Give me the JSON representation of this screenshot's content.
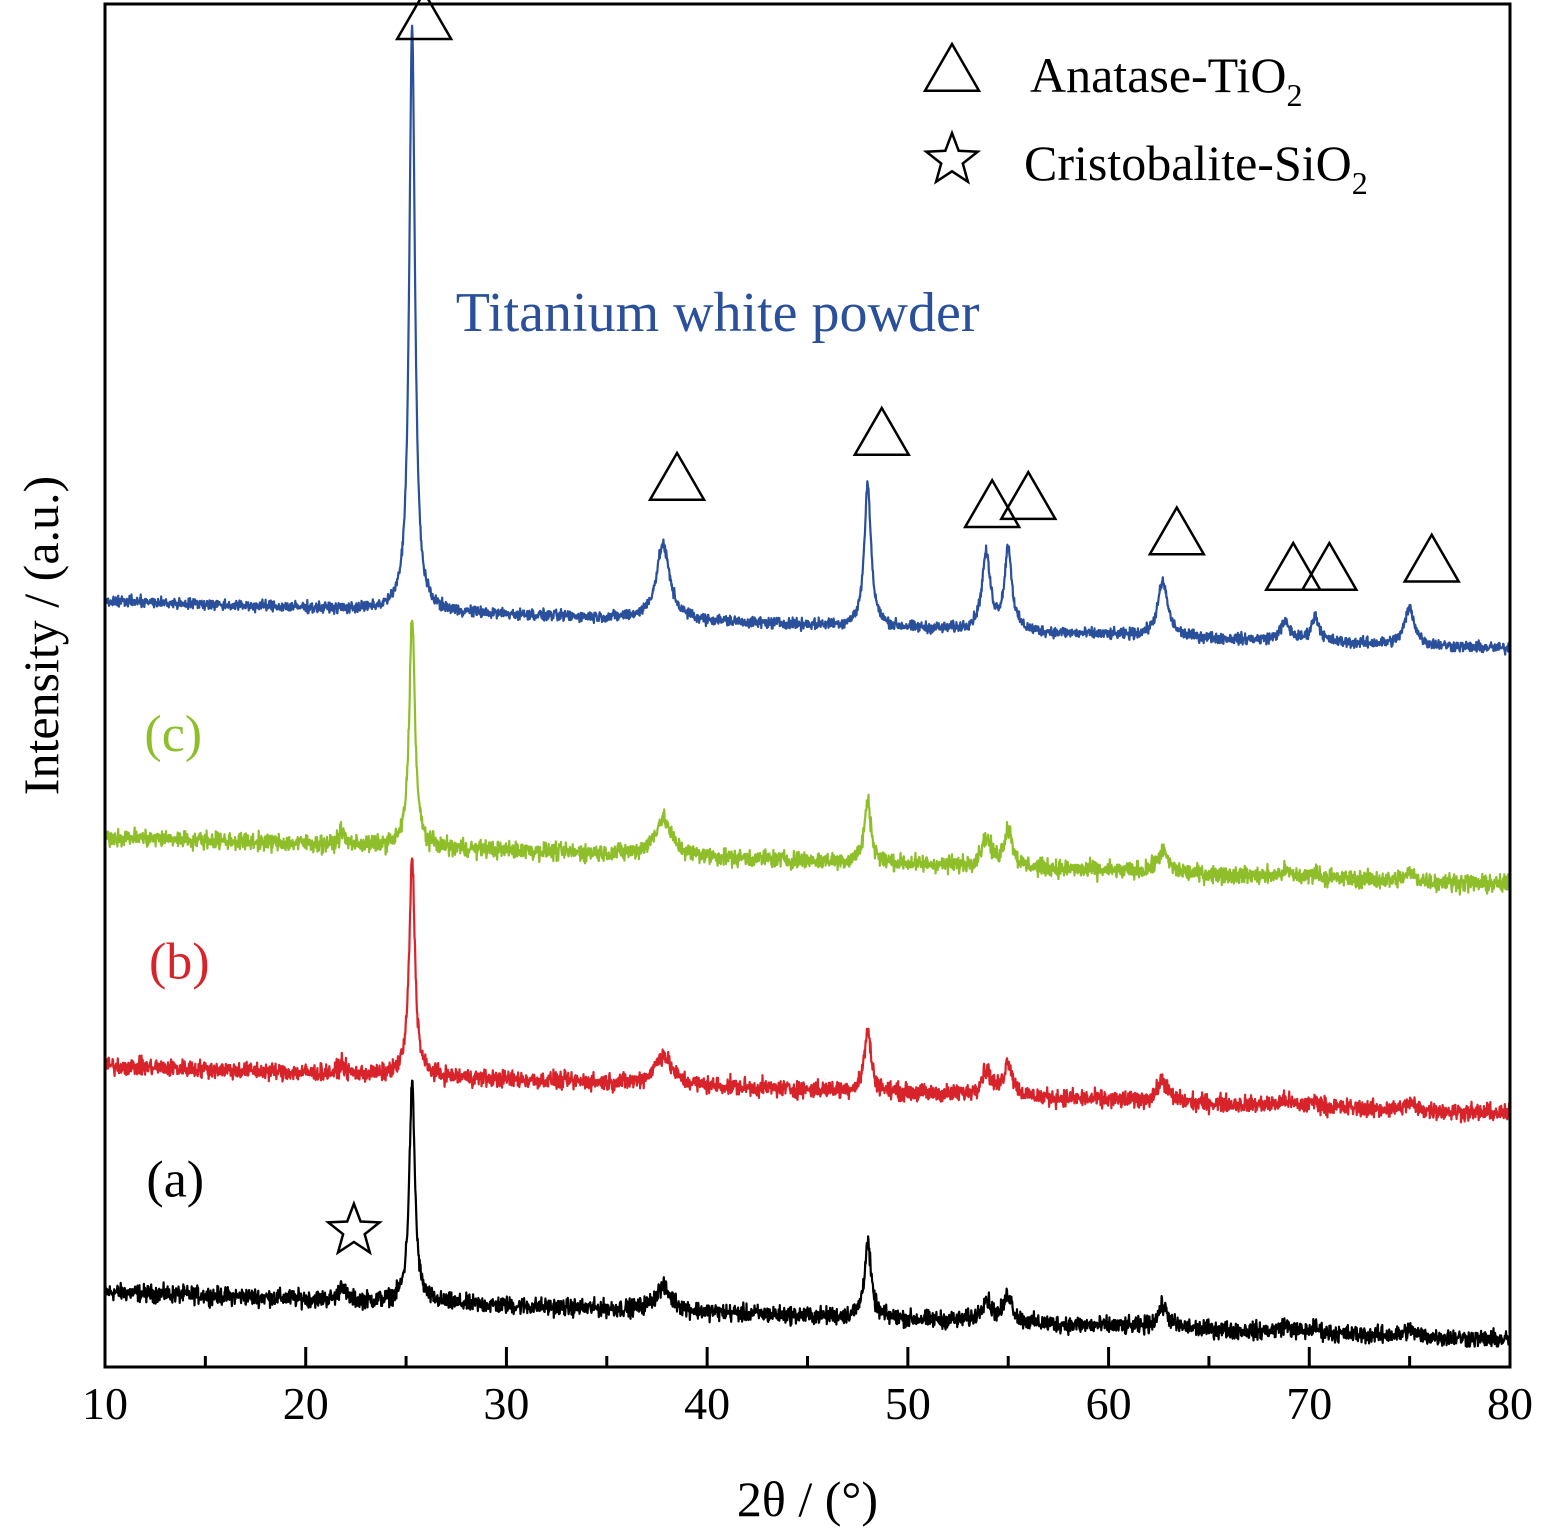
{
  "chart_data": {
    "type": "line",
    "xlabel": "2θ / (°)",
    "ylabel": "Intensity / (a.u.)",
    "xlim": [
      10,
      80
    ],
    "ylim": [
      0,
      1
    ],
    "x_ticks": [
      10,
      20,
      30,
      40,
      50,
      60,
      70,
      80
    ],
    "x_minor_step": 5,
    "grid": false,
    "legend": {
      "position": "top-right",
      "entries": [
        {
          "marker": "triangle",
          "label_main": "Anatase-TiO",
          "label_sub": "2"
        },
        {
          "marker": "star",
          "label_main": "Cristobalite-SiO",
          "label_sub": "2"
        }
      ]
    },
    "annotations": [
      {
        "text": "Titanium white powder",
        "color": "#2a4f9b",
        "x": 47,
        "y": 0.76
      }
    ],
    "series": [
      {
        "name": "(a)",
        "color": "#000000",
        "label_color": "#000000",
        "label_pos": [
          13.5,
          0.125
        ],
        "baseline": 0.055,
        "slope": -0.0005,
        "noise": 0.0055,
        "peaks": [
          [
            21.8,
            0.012,
            0.15
          ],
          [
            25.3,
            0.16,
            0.17
          ],
          [
            37.8,
            0.017,
            0.5
          ],
          [
            48.0,
            0.055,
            0.2
          ],
          [
            53.9,
            0.016,
            0.3
          ],
          [
            55.0,
            0.02,
            0.25
          ],
          [
            62.7,
            0.016,
            0.3
          ],
          [
            68.8,
            0.005,
            0.3
          ],
          [
            70.3,
            0.004,
            0.25
          ],
          [
            75.0,
            0.005,
            0.3
          ]
        ]
      },
      {
        "name": "(b)",
        "color": "#d9232a",
        "label_color": "#d9232a",
        "label_pos": [
          13.7,
          0.285
        ],
        "baseline": 0.221,
        "slope": -0.0005,
        "noise": 0.0055,
        "peaks": [
          [
            21.8,
            0.008,
            0.15
          ],
          [
            25.3,
            0.16,
            0.17
          ],
          [
            37.8,
            0.022,
            0.5
          ],
          [
            48.0,
            0.045,
            0.2
          ],
          [
            53.9,
            0.018,
            0.3
          ],
          [
            55.0,
            0.025,
            0.25
          ],
          [
            62.7,
            0.016,
            0.3
          ],
          [
            68.8,
            0.004,
            0.3
          ],
          [
            70.3,
            0.004,
            0.25
          ],
          [
            75.0,
            0.005,
            0.3
          ]
        ]
      },
      {
        "name": "(c)",
        "color": "#8ebf2a",
        "label_color": "#8ebf2a",
        "label_pos": [
          13.4,
          0.452
        ],
        "baseline": 0.389,
        "slope": -0.0005,
        "noise": 0.0055,
        "peaks": [
          [
            21.8,
            0.01,
            0.15
          ],
          [
            25.3,
            0.17,
            0.17
          ],
          [
            37.8,
            0.027,
            0.5
          ],
          [
            48.0,
            0.045,
            0.2
          ],
          [
            53.9,
            0.02,
            0.3
          ],
          [
            55.0,
            0.028,
            0.25
          ],
          [
            62.7,
            0.016,
            0.3
          ],
          [
            68.8,
            0.004,
            0.3
          ],
          [
            70.3,
            0.004,
            0.25
          ],
          [
            75.0,
            0.006,
            0.3
          ]
        ]
      },
      {
        "name": "Titanium white powder",
        "color": "#2a4f9b",
        "label_color": "#2a4f9b",
        "baseline": 0.562,
        "slope": -0.0005,
        "noise": 0.0035,
        "peaks": [
          [
            25.3,
            0.43,
            0.17
          ],
          [
            37.8,
            0.055,
            0.4
          ],
          [
            48.0,
            0.105,
            0.2
          ],
          [
            53.9,
            0.055,
            0.25
          ],
          [
            55.0,
            0.06,
            0.22
          ],
          [
            62.7,
            0.04,
            0.3
          ],
          [
            68.8,
            0.013,
            0.3
          ],
          [
            70.3,
            0.018,
            0.25
          ],
          [
            75.0,
            0.027,
            0.3
          ]
        ]
      }
    ],
    "markers": [
      {
        "symbol": "triangle",
        "x": 25.9,
        "y": 0.988
      },
      {
        "symbol": "triangle",
        "x": 38.5,
        "y": 0.65
      },
      {
        "symbol": "triangle",
        "x": 48.7,
        "y": 0.683
      },
      {
        "symbol": "triangle",
        "x": 54.2,
        "y": 0.63
      },
      {
        "symbol": "triangle",
        "x": 56.0,
        "y": 0.636
      },
      {
        "symbol": "triangle",
        "x": 63.4,
        "y": 0.61
      },
      {
        "symbol": "triangle",
        "x": 69.2,
        "y": 0.584
      },
      {
        "symbol": "triangle",
        "x": 71.0,
        "y": 0.584
      },
      {
        "symbol": "triangle",
        "x": 76.1,
        "y": 0.59
      },
      {
        "symbol": "star",
        "x": 22.4,
        "y": 0.1
      }
    ]
  }
}
